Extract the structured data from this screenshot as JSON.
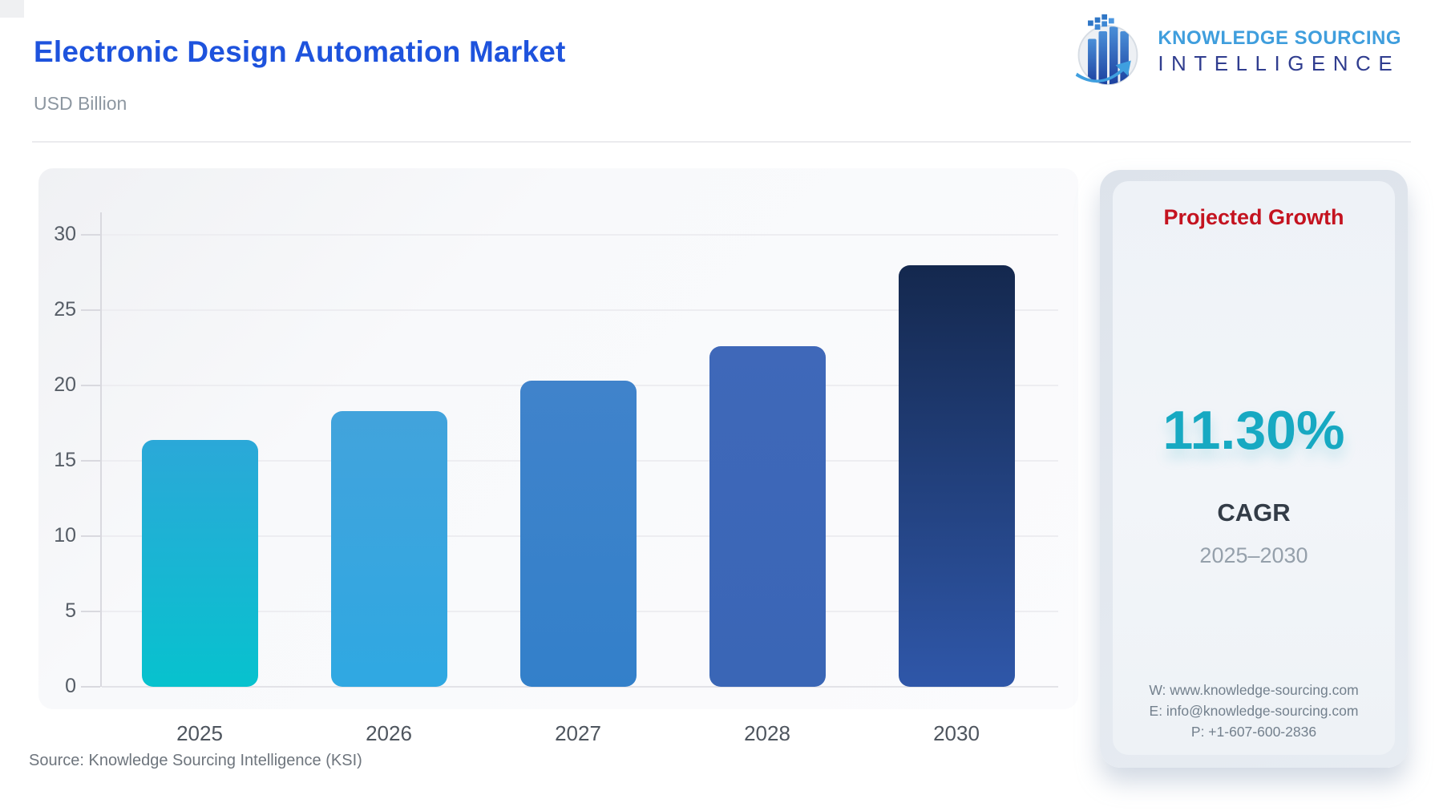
{
  "header": {
    "title": "Electronic Design Automation Market",
    "unit": "USD Billion"
  },
  "logo": {
    "line1": "KNOWLEDGE SOURCING",
    "line2": "INTELLIGENCE"
  },
  "chart_data": {
    "type": "bar",
    "title": "Electronic Design Automation Market",
    "ylabel": "USD Billion",
    "categories": [
      "2025",
      "2026",
      "2027",
      "2028",
      "2030"
    ],
    "values": [
      16.4,
      18.3,
      20.3,
      22.6,
      28.0
    ],
    "ylim": [
      0,
      30
    ],
    "yticks": [
      0,
      5,
      10,
      15,
      20,
      25,
      30
    ],
    "grid": true,
    "legend": "none",
    "bar_gradients": [
      [
        "#2BA8D8",
        "#07C2CE"
      ],
      [
        "#42A3DC",
        "#2FA8E2"
      ],
      [
        "#4083CB",
        "#3380CA"
      ],
      [
        "#3F68B9",
        "#3A66B6"
      ],
      [
        "#14284E",
        "#2F57A9"
      ]
    ]
  },
  "growth_panel": {
    "title": "Projected Growth",
    "value": "11.30%",
    "metric": "CAGR",
    "period": "2025–2030",
    "contact": {
      "website": "W: www.knowledge-sourcing.com",
      "email": "E: info@knowledge-sourcing.com",
      "phone": "P: +1-607-600-2836"
    }
  },
  "footer": {
    "source": "Source: Knowledge Sourcing Intelligence (KSI)"
  },
  "colors": {
    "title_blue": "#1E53DD",
    "growth_red": "#C41320",
    "cagr_teal": "#17A9C2",
    "logo_light_blue": "#3F9EDD",
    "logo_dark_blue": "#303D8F"
  }
}
